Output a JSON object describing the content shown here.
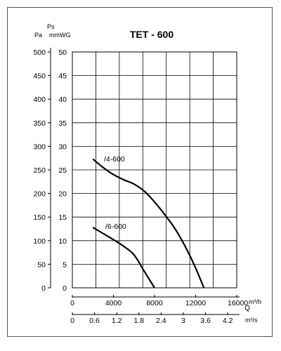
{
  "chart_data": {
    "type": "line",
    "title": "TET - 600",
    "left_axis": {
      "label_top": "Ps",
      "label_pa": "Pa",
      "label_mmwg": "mmWG",
      "pa_ticks": [
        "500",
        "450",
        "400",
        "350",
        "300",
        "250",
        "200",
        "150",
        "100",
        "50",
        "0"
      ],
      "mmwg_ticks": [
        "50",
        "45",
        "40",
        "35",
        "30",
        "25",
        "20",
        "15",
        "10",
        "5",
        "0"
      ],
      "ylim_mmwg": [
        0,
        50
      ]
    },
    "x_axis_m3h": {
      "ticks": [
        "0",
        "4000",
        "8000",
        "12000",
        "16000"
      ],
      "unit": "m³/h",
      "xlim": [
        0,
        16000
      ]
    },
    "x_axis_m3s": {
      "label": "Q",
      "ticks": [
        "0",
        "0.6",
        "1.2",
        "1.8",
        "2.4",
        "3",
        "3.6",
        "4.2"
      ],
      "unit": "m³/s"
    },
    "grid": true,
    "series": [
      {
        "name": "/4-600",
        "x": [
          2000,
          3000,
          4000,
          5000,
          6000,
          7000,
          8000,
          9000,
          10000,
          11000,
          12000,
          12800
        ],
        "y": [
          27.3,
          25.5,
          24.0,
          22.9,
          22.0,
          20.5,
          18.2,
          15.5,
          12.5,
          8.7,
          4.2,
          0
        ]
      },
      {
        "name": "/6-600",
        "x": [
          2000,
          3000,
          4000,
          5000,
          6000,
          7000,
          8000
        ],
        "y": [
          12.8,
          11.5,
          10.2,
          8.8,
          7.0,
          3.5,
          0
        ]
      }
    ]
  }
}
